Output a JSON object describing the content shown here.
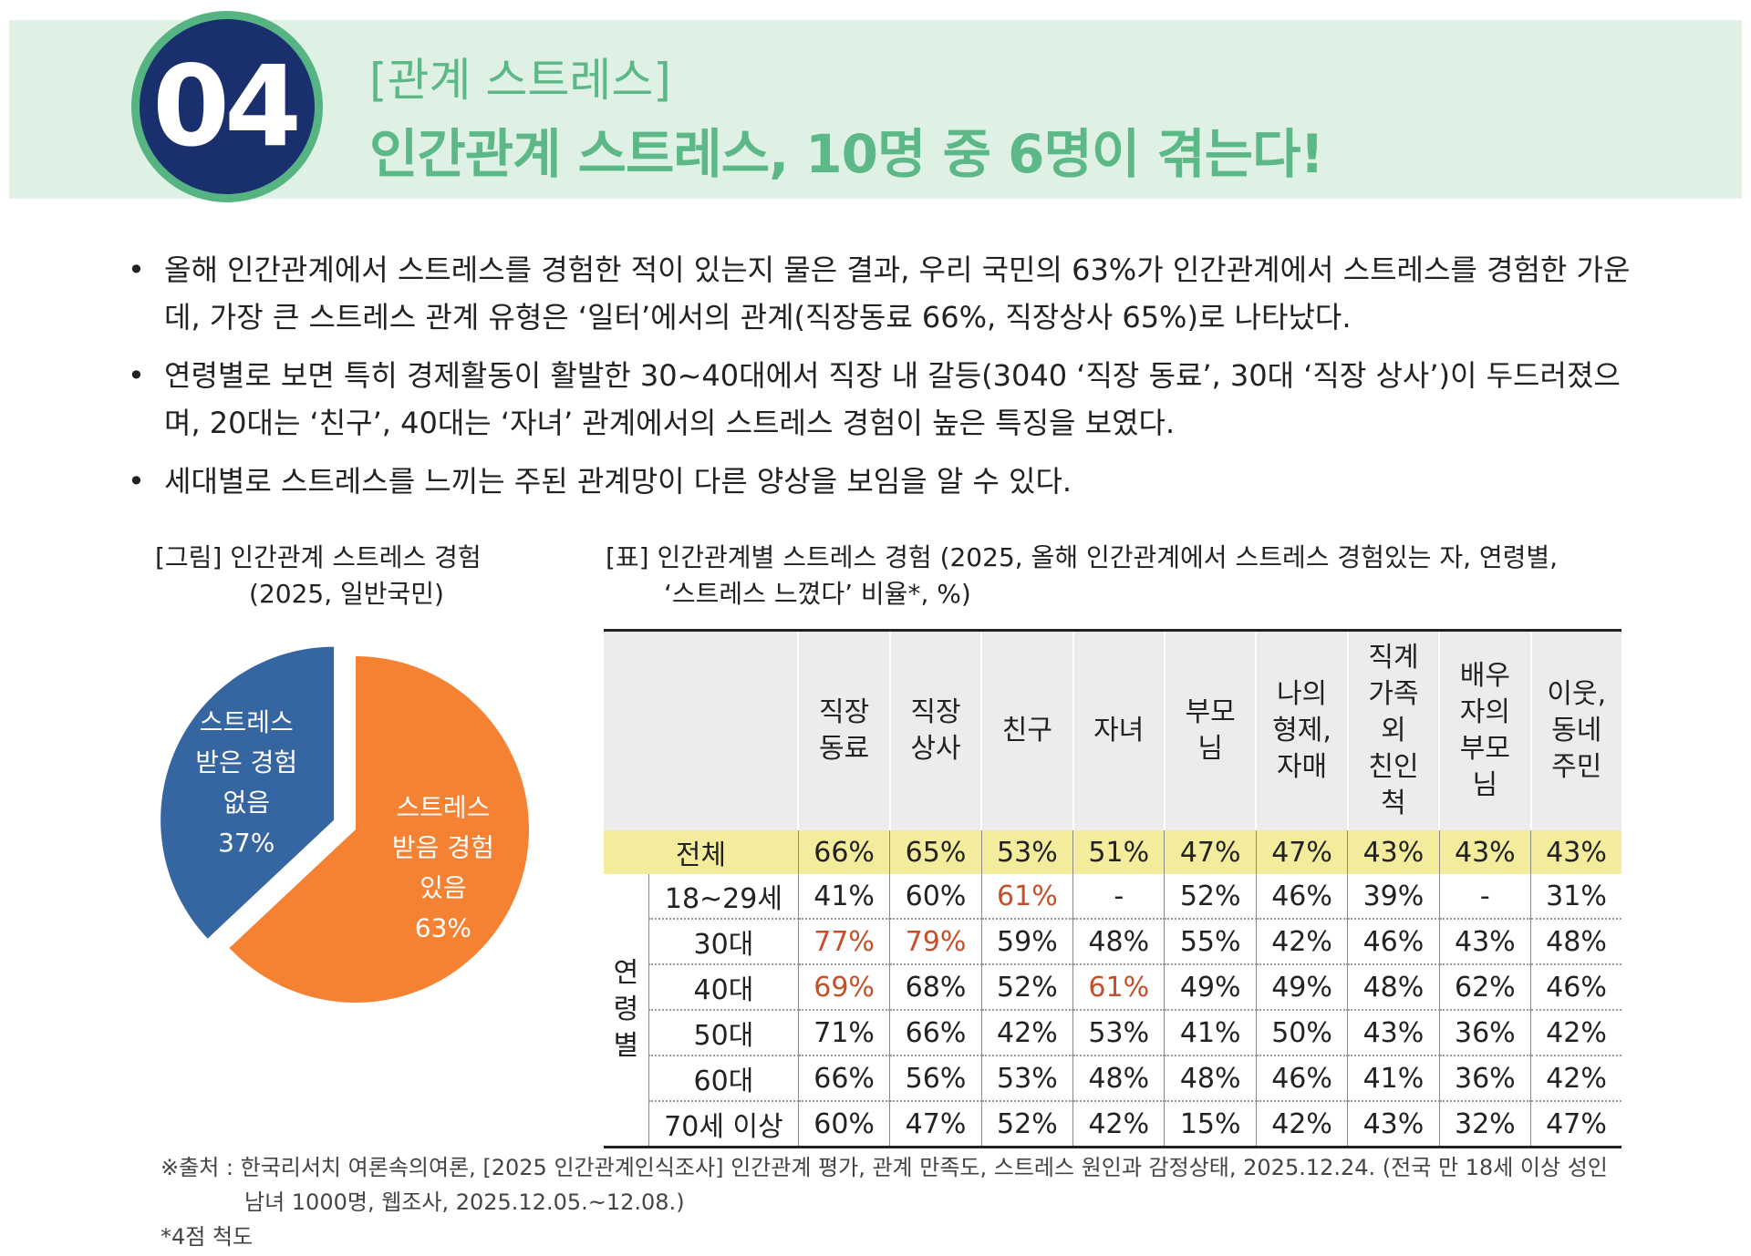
{
  "header": {
    "number": "04",
    "subtitle": "[관계 스트레스]",
    "title": "인간관계 스트레스, 10명 중 6명이 겪는다!"
  },
  "bullets": [
    "올해 인간관계에서 스트레스를 경험한 적이 있는지 물은 결과, 우리 국민의 63%가 인간관계에서 스트레스를 경험한 가운데, 가장 큰 스트레스 관계 유형은 ‘일터’에서의 관계(직장동료 66%, 직장상사 65%)로 나타났다.",
    "연령별로 보면 특히 경제활동이 활발한 30~40대에서 직장 내 갈등(3040 ‘직장 동료’, 30대 ‘직장 상사’)이 두드러졌으며, 20대는 ‘친구’, 40대는 ‘자녀’ 관계에서의 스트레스 경험이 높은 특징을 보였다.",
    "세대별로 스트레스를 느끼는 주된 관계망이 다른 양상을 보임을 알 수 있다."
  ],
  "bullet_symbol": "•",
  "pie_caption": {
    "line1": "[그림] 인간관계 스트레스 경험",
    "line2": "(2025, 일반국민)"
  },
  "chart_data": {
    "type": "pie",
    "slices": [
      {
        "label": [
          "스트레스",
          "받음 경험",
          "있음"
        ],
        "value": 63,
        "value_label": "63%",
        "color": "#f58233",
        "exploded": false
      },
      {
        "label": [
          "스트레스",
          "받은 경험",
          "없음"
        ],
        "value": 37,
        "value_label": "37%",
        "color": "#3666a2",
        "exploded": true
      }
    ]
  },
  "table_caption": {
    "line1": "[표] 인간관계별 스트레스 경험 (2025, 올해 인간관계에서 스트레스 경험있는 자, 연령별,",
    "line2": "‘스트레스 느꼈다’ 비율*, %)"
  },
  "table": {
    "columns": [
      [
        "직장",
        "동료"
      ],
      [
        "직장",
        "상사"
      ],
      [
        "친구"
      ],
      [
        "자녀"
      ],
      [
        "부모",
        "님"
      ],
      [
        "나의",
        "형제,",
        "자매"
      ],
      [
        "직계",
        "가족",
        "외",
        "친인",
        "척"
      ],
      [
        "배우",
        "자의",
        "부모",
        "님"
      ],
      [
        "이웃,",
        "동네",
        "주민"
      ]
    ],
    "total": {
      "label": "전체",
      "values": [
        "66%",
        "65%",
        "53%",
        "51%",
        "47%",
        "47%",
        "43%",
        "43%",
        "43%"
      ]
    },
    "group_label": [
      "연",
      "령",
      "별"
    ],
    "rows": [
      {
        "label": "18~29세",
        "values": [
          "41%",
          "60%",
          "61%",
          "-",
          "52%",
          "46%",
          "39%",
          "-",
          "31%"
        ],
        "highlight": [
          2
        ]
      },
      {
        "label": "30대",
        "values": [
          "77%",
          "79%",
          "59%",
          "48%",
          "55%",
          "42%",
          "46%",
          "43%",
          "48%"
        ],
        "highlight": [
          0,
          1
        ]
      },
      {
        "label": "40대",
        "values": [
          "69%",
          "68%",
          "52%",
          "61%",
          "49%",
          "49%",
          "48%",
          "62%",
          "46%"
        ],
        "highlight": [
          0,
          3
        ]
      },
      {
        "label": "50대",
        "values": [
          "71%",
          "66%",
          "42%",
          "53%",
          "41%",
          "50%",
          "43%",
          "36%",
          "42%"
        ],
        "highlight": []
      },
      {
        "label": "60대",
        "values": [
          "66%",
          "56%",
          "53%",
          "48%",
          "48%",
          "46%",
          "41%",
          "36%",
          "42%"
        ],
        "highlight": []
      },
      {
        "label": "70세 이상",
        "values": [
          "60%",
          "47%",
          "52%",
          "42%",
          "15%",
          "42%",
          "43%",
          "32%",
          "47%"
        ],
        "highlight": []
      }
    ]
  },
  "source": {
    "line1": "※출처 : 한국리서치 여론속의여론, [2025 인간관계인식조사] 인간관계 평가, 관계 만족도, 스트레스 원인과 감정상태, 2025.12.24. (전국 만 18세 이상 성인",
    "line2": "남녀 1000명, 웹조사, 2025.12.05.~12.08.)",
    "note": "*4점 척도"
  }
}
